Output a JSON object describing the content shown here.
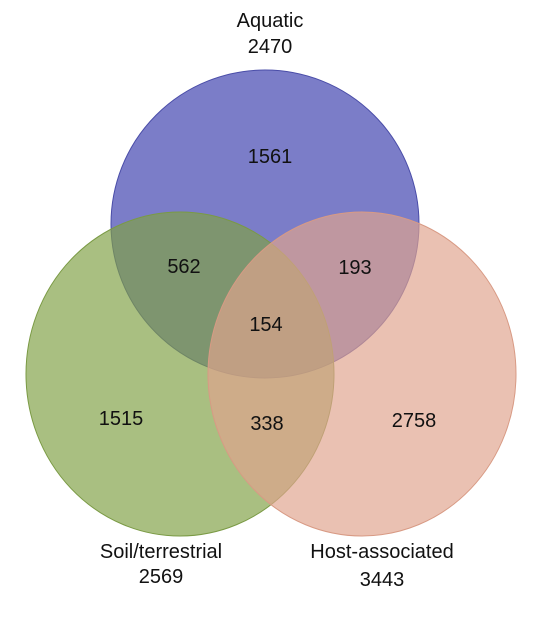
{
  "sets": {
    "aquatic": {
      "name": "Aquatic",
      "total": "2470",
      "color": "#5659b8"
    },
    "soil": {
      "name": "Soil/terrestrial",
      "total": "2569",
      "color": "#80a046"
    },
    "host": {
      "name": "Host-associated",
      "total": "3443",
      "color": "#e0a48e"
    }
  },
  "regions": {
    "aquatic_only": "1561",
    "soil_only": "1515",
    "host_only": "2758",
    "aquatic_soil": "562",
    "aquatic_host": "193",
    "soil_host": "338",
    "all_three": "154"
  }
}
